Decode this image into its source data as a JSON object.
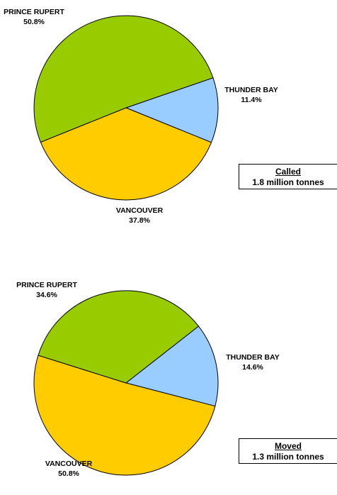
{
  "colors": {
    "prince_rupert": "#99cc00",
    "thunder_bay": "#99ccff",
    "vancouver": "#ffcc00",
    "outline": "#000000"
  },
  "chart_data": [
    {
      "type": "pie",
      "title": "",
      "legend_box": {
        "title": "Called",
        "subtitle": "1.8 million tonnes"
      },
      "slices": [
        {
          "label": "THUNDER BAY",
          "value": 11.4,
          "value_label": "11.4%",
          "color": "#99ccff"
        },
        {
          "label": "VANCOUVER",
          "value": 37.8,
          "value_label": "37.8%",
          "color": "#ffcc00"
        },
        {
          "label": "PRINCE RUPERT",
          "value": 50.8,
          "value_label": "50.8%",
          "color": "#99cc00"
        }
      ]
    },
    {
      "type": "pie",
      "title": "",
      "legend_box": {
        "title": "Moved",
        "subtitle": "1.3 million tonnes"
      },
      "slices": [
        {
          "label": "THUNDER BAY",
          "value": 14.6,
          "value_label": "14.6%",
          "color": "#99ccff"
        },
        {
          "label": "VANCOUVER",
          "value": 50.8,
          "value_label": "50.8%",
          "color": "#ffcc00"
        },
        {
          "label": "PRINCE RUPERT",
          "value": 34.6,
          "value_label": "34.6%",
          "color": "#99cc00"
        }
      ]
    }
  ]
}
